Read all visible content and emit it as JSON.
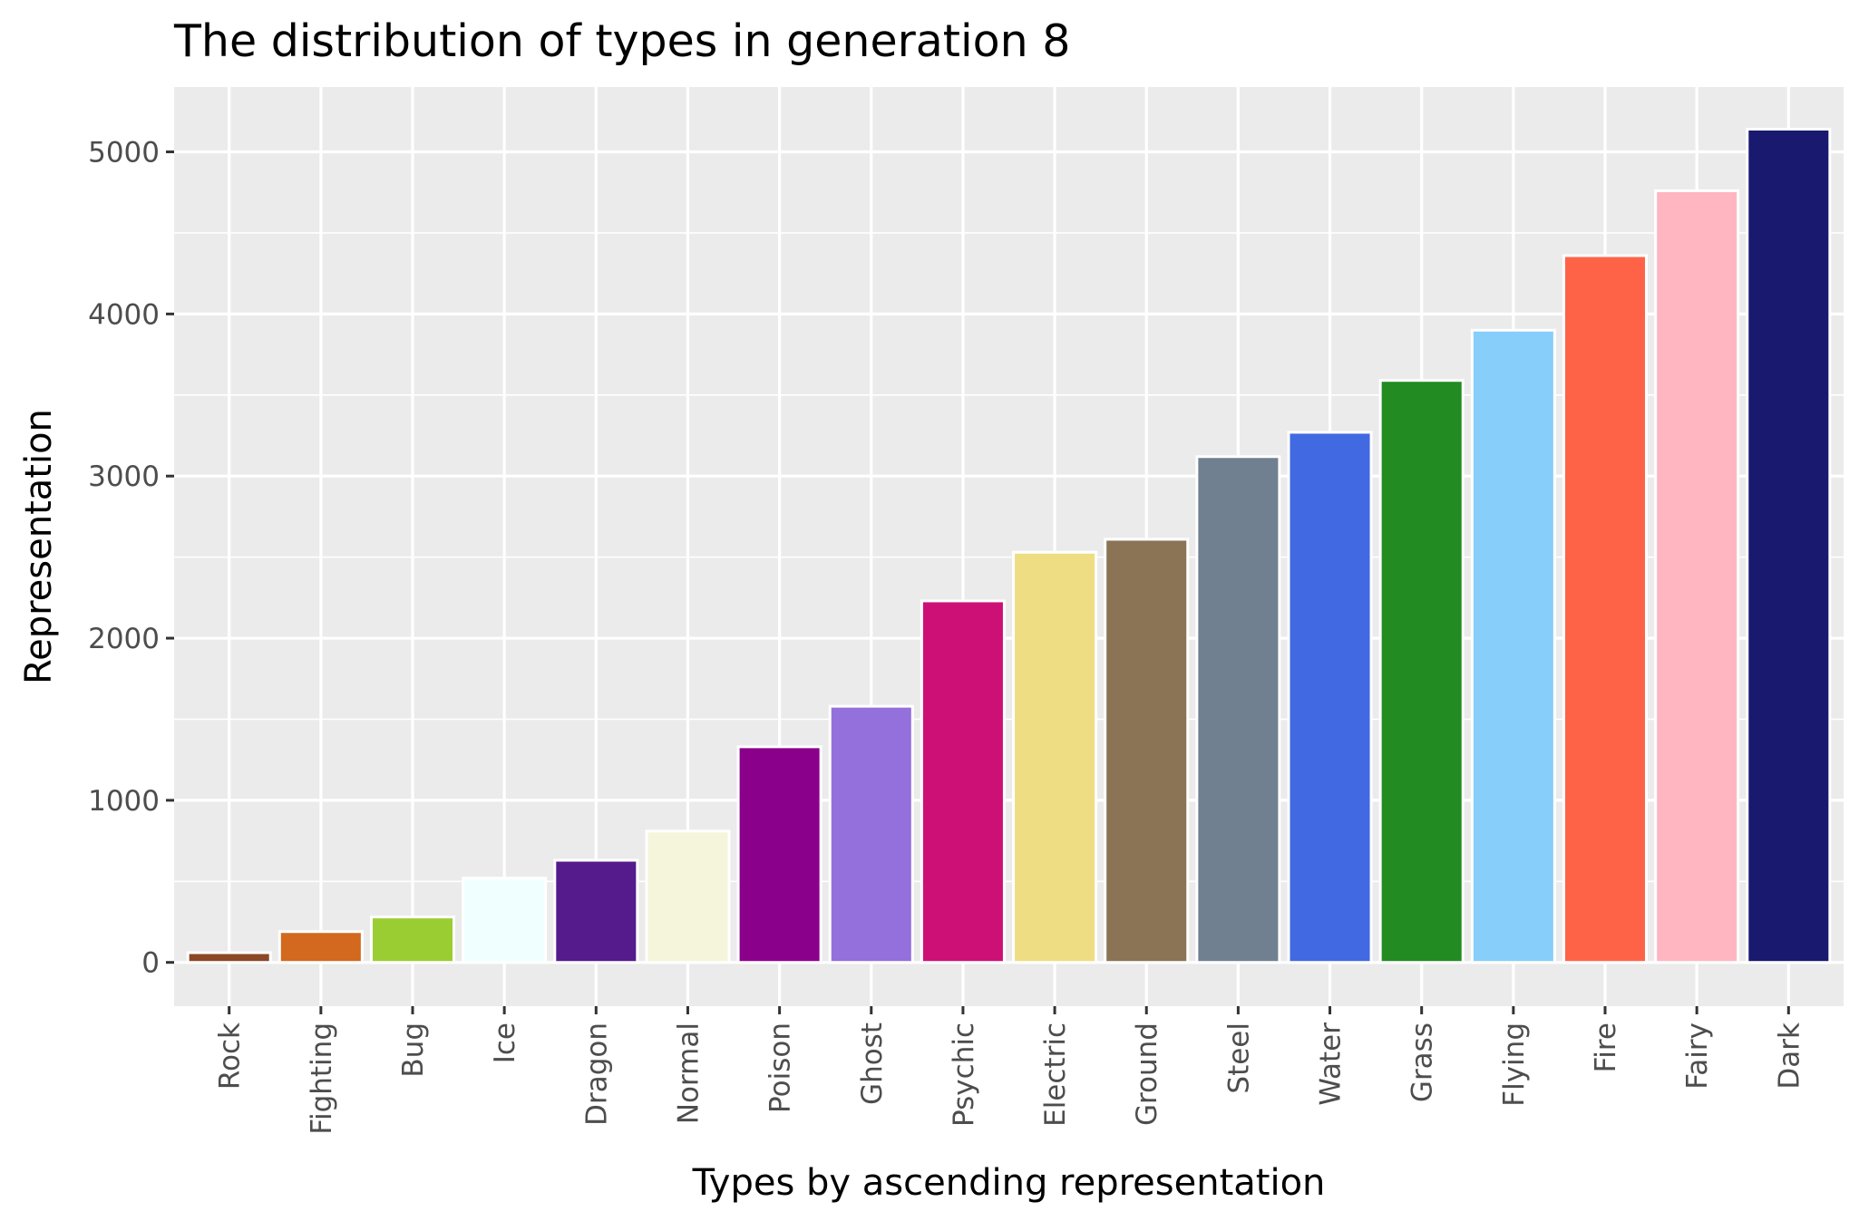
{
  "chart_data": {
    "type": "bar",
    "title": "The distribution of types in generation 8",
    "xlabel": "Types by ascending representation",
    "ylabel": "Representation",
    "categories": [
      "Rock",
      "Fighting",
      "Bug",
      "Ice",
      "Dragon",
      "Normal",
      "Poison",
      "Ghost",
      "Psychic",
      "Electric",
      "Ground",
      "Steel",
      "Water",
      "Grass",
      "Flying",
      "Fire",
      "Fairy",
      "Dark"
    ],
    "values": [
      60,
      190,
      280,
      520,
      630,
      810,
      1330,
      1580,
      2230,
      2530,
      2610,
      3120,
      3270,
      3590,
      3900,
      4360,
      4760,
      5140
    ],
    "colors": [
      "#8B4726",
      "#D2691E",
      "#9ACD32",
      "#F0FFFF",
      "#551A8B",
      "#F5F5DC",
      "#8B008B",
      "#9370DB",
      "#CD1076",
      "#EEDD82",
      "#8B7355",
      "#708090",
      "#4169E1",
      "#228B22",
      "#87CEFA",
      "#FF6347",
      "#FFB6C1",
      "#191970"
    ],
    "yticks": [
      0,
      1000,
      2000,
      3000,
      4000,
      5000
    ],
    "ylim": [
      -270,
      5400
    ],
    "grid": true,
    "legend": "none",
    "panel_background": "#EBEBEB",
    "bar_outline": "#FFFFFF"
  }
}
